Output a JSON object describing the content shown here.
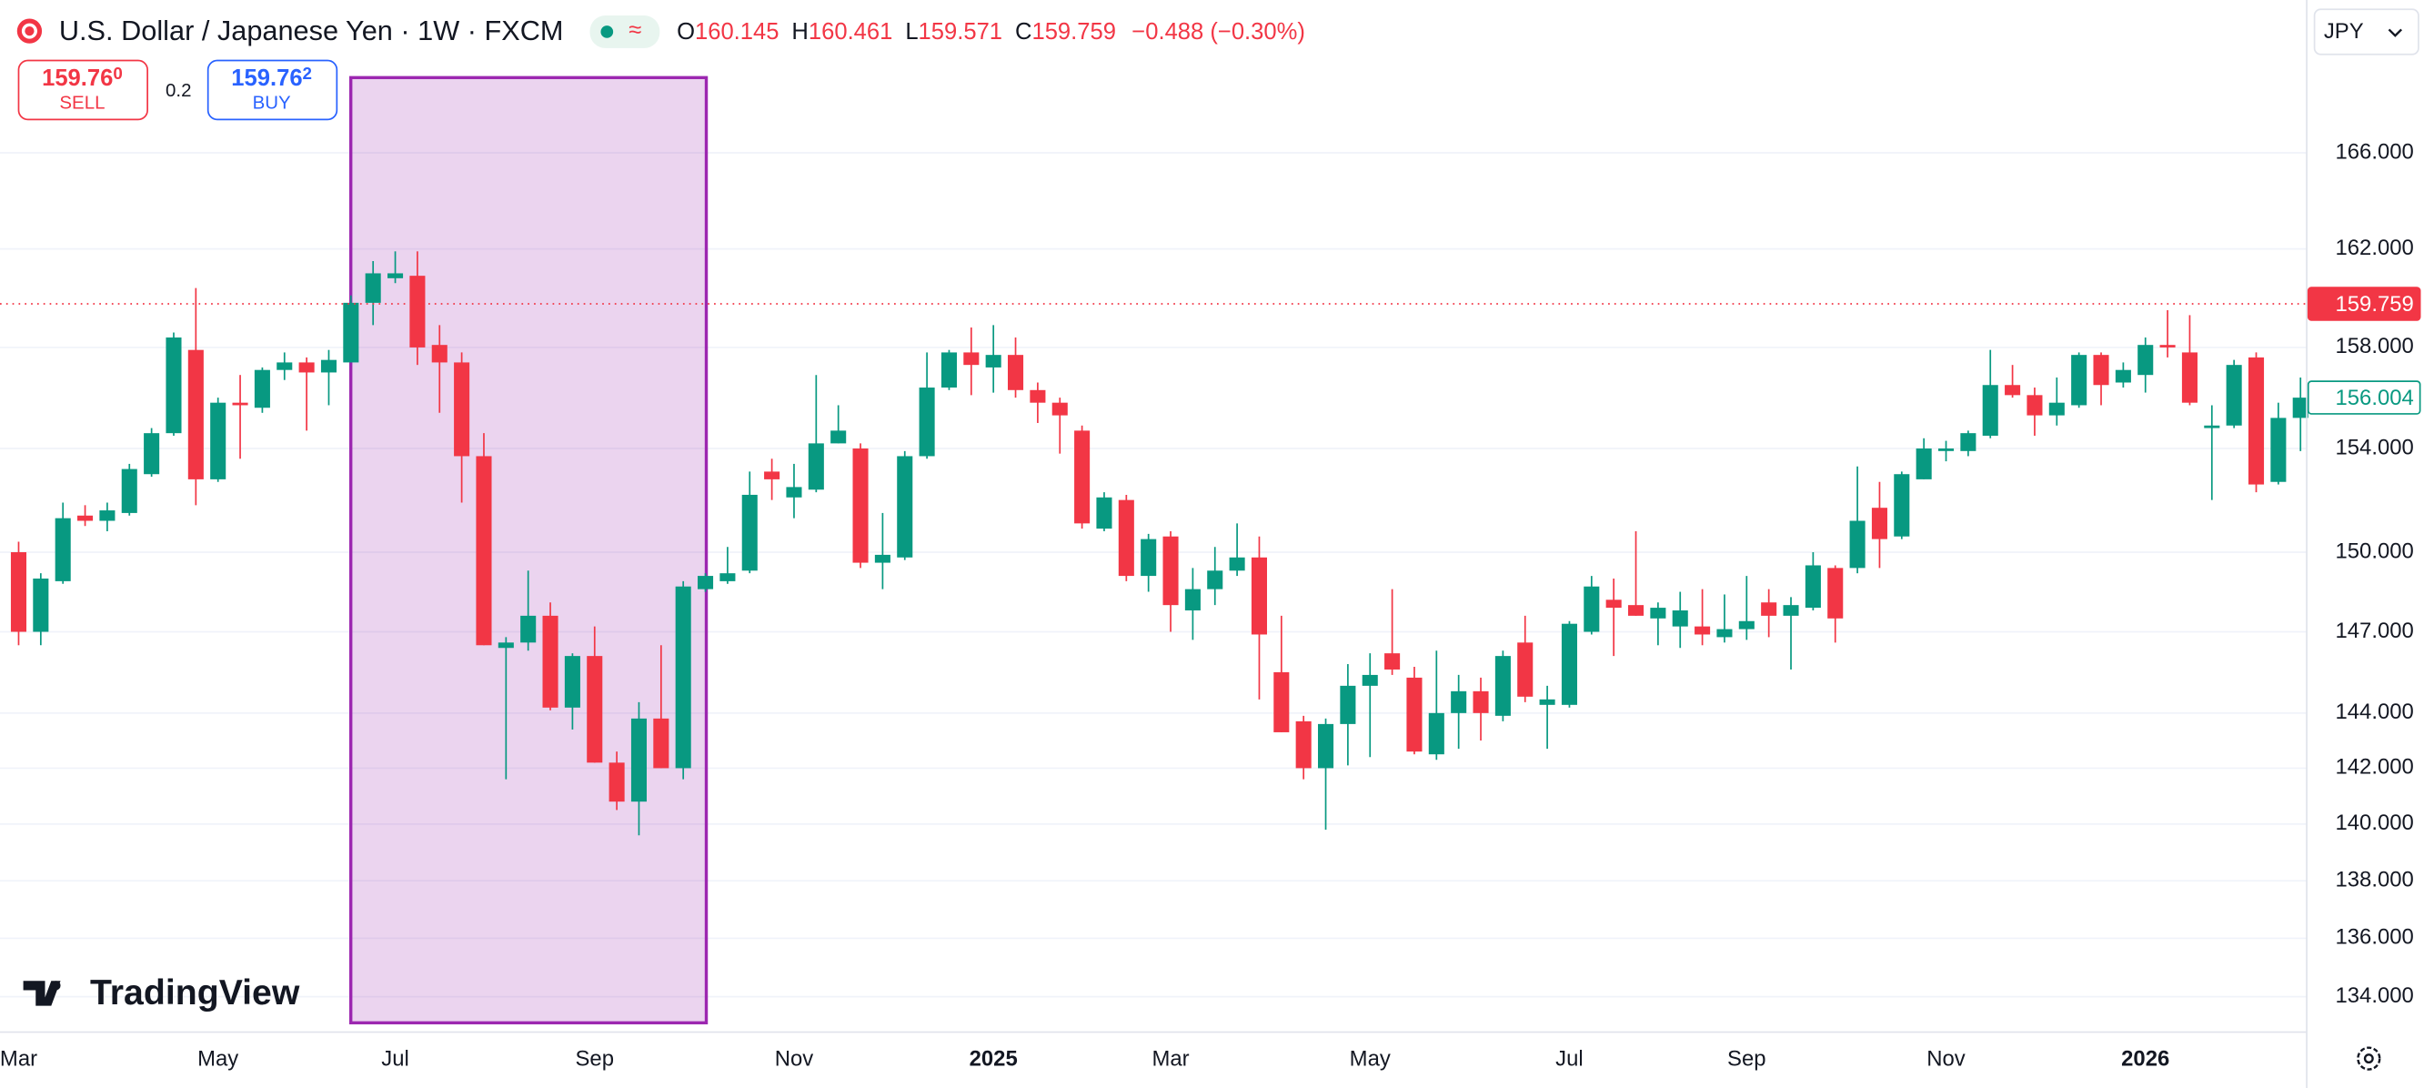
{
  "header": {
    "title": "U.S. Dollar / Japanese Yen · 1W · FXCM",
    "ohlc": [
      {
        "label": "O",
        "value": "160.145"
      },
      {
        "label": "H",
        "value": "160.461"
      },
      {
        "label": "L",
        "value": "159.571"
      },
      {
        "label": "C",
        "value": "159.759"
      }
    ],
    "change": "−0.488 (−0.30%)"
  },
  "trade": {
    "sell": {
      "price": "159.76",
      "pip": "0",
      "label": "SELL"
    },
    "spread": "0.2",
    "buy": {
      "price": "159.76",
      "pip": "2",
      "label": "BUY"
    }
  },
  "currency": "JPY",
  "brand": "TradingView",
  "chart_data": {
    "type": "candlestick",
    "log": true,
    "grid": true,
    "up_color": "#089981",
    "down_color": "#f23645",
    "categories": [
      "Mar",
      null,
      null,
      null,
      null,
      null,
      null,
      null,
      null,
      "May",
      null,
      null,
      null,
      null,
      null,
      null,
      null,
      "Jul",
      null,
      null,
      null,
      null,
      null,
      null,
      null,
      null,
      "Sep",
      null,
      null,
      null,
      null,
      null,
      null,
      null,
      null,
      "Nov",
      null,
      null,
      null,
      null,
      null,
      null,
      null,
      null,
      "2025",
      null,
      null,
      null,
      null,
      null,
      null,
      null,
      "Mar",
      null,
      null,
      null,
      null,
      null,
      null,
      null,
      null,
      "May",
      null,
      null,
      null,
      null,
      null,
      null,
      null,
      null,
      "Jul",
      null,
      null,
      null,
      null,
      null,
      null,
      null,
      "Sep",
      null,
      null,
      null,
      null,
      null,
      null,
      null,
      null,
      "Nov",
      null,
      null,
      null,
      null,
      null,
      null,
      null,
      null,
      "2026",
      null,
      null,
      null,
      null,
      null,
      null,
      null
    ],
    "open": [
      150.0,
      147.0,
      148.9,
      151.4,
      151.2,
      151.5,
      153.0,
      154.6,
      157.9,
      152.8,
      155.8,
      155.6,
      157.1,
      157.4,
      157.0,
      157.4,
      159.8,
      160.8,
      160.9,
      158.1,
      157.4,
      153.7,
      146.4,
      146.6,
      147.6,
      144.2,
      146.1,
      142.2,
      140.8,
      143.8,
      142.0,
      148.6,
      148.9,
      149.3,
      153.1,
      152.1,
      152.4,
      154.2,
      154.0,
      149.6,
      149.8,
      153.7,
      156.4,
      157.8,
      157.2,
      157.7,
      156.3,
      155.8,
      154.7,
      150.9,
      152.0,
      149.1,
      150.6,
      147.8,
      148.6,
      149.3,
      149.8,
      145.5,
      143.7,
      142.0,
      143.6,
      145.0,
      146.2,
      145.3,
      142.5,
      144.0,
      144.8,
      143.9,
      146.6,
      144.3,
      144.3,
      147.0,
      148.2,
      148.0,
      147.5,
      147.2,
      147.2,
      146.8,
      147.1,
      148.1,
      147.6,
      147.9,
      149.4,
      149.4,
      151.7,
      150.6,
      152.8,
      153.9,
      153.9,
      154.5,
      156.5,
      156.1,
      155.3,
      155.7,
      157.7,
      156.6,
      156.9,
      158.1,
      157.8,
      154.8,
      154.9,
      157.6,
      152.7,
      155.2
    ],
    "high": [
      150.4,
      149.2,
      151.9,
      151.8,
      151.9,
      153.4,
      154.8,
      158.6,
      160.4,
      156.0,
      156.9,
      157.2,
      157.8,
      157.6,
      157.9,
      160.1,
      161.5,
      161.9,
      161.9,
      158.9,
      157.8,
      154.6,
      146.8,
      149.3,
      148.1,
      146.2,
      147.2,
      142.6,
      144.4,
      146.5,
      148.9,
      149.2,
      150.2,
      153.1,
      153.6,
      153.4,
      156.9,
      155.7,
      154.2,
      151.5,
      153.9,
      157.8,
      157.9,
      158.8,
      158.9,
      158.4,
      156.6,
      156.0,
      154.9,
      152.3,
      152.2,
      150.7,
      150.8,
      149.4,
      150.2,
      151.1,
      150.6,
      147.6,
      143.9,
      143.8,
      145.8,
      146.2,
      148.6,
      145.7,
      146.3,
      145.4,
      145.3,
      146.3,
      147.6,
      145.0,
      147.4,
      149.1,
      149.0,
      150.8,
      148.1,
      148.5,
      148.6,
      148.4,
      149.1,
      148.6,
      148.3,
      150.0,
      149.5,
      153.3,
      152.7,
      153.1,
      154.4,
      154.3,
      154.7,
      157.9,
      157.3,
      156.4,
      156.8,
      157.8,
      157.8,
      157.4,
      158.4,
      159.5,
      159.3,
      155.7,
      157.5,
      157.8,
      155.8,
      156.8
    ],
    "low": [
      146.5,
      146.5,
      148.8,
      151.0,
      150.8,
      151.4,
      152.9,
      154.5,
      151.8,
      152.7,
      153.6,
      155.4,
      156.7,
      154.7,
      155.7,
      157.4,
      158.9,
      160.6,
      157.3,
      155.4,
      151.9,
      146.5,
      141.6,
      146.3,
      144.1,
      143.4,
      142.2,
      140.5,
      139.6,
      142.0,
      141.6,
      148.5,
      148.8,
      149.2,
      152.0,
      151.3,
      152.3,
      154.2,
      149.4,
      148.6,
      149.7,
      153.6,
      156.3,
      156.1,
      156.2,
      156.0,
      155.0,
      153.8,
      150.9,
      150.8,
      148.9,
      148.5,
      147.0,
      146.7,
      148.0,
      149.1,
      144.5,
      143.3,
      141.6,
      139.8,
      142.1,
      142.4,
      145.4,
      142.5,
      142.3,
      142.7,
      143.0,
      143.7,
      144.4,
      142.7,
      144.2,
      146.9,
      146.1,
      147.6,
      146.5,
      146.4,
      146.5,
      146.6,
      146.7,
      146.8,
      145.6,
      147.8,
      146.6,
      149.2,
      149.4,
      150.5,
      152.8,
      153.5,
      153.7,
      154.4,
      156.0,
      154.5,
      154.9,
      155.6,
      155.7,
      156.4,
      156.2,
      157.6,
      155.7,
      152.0,
      154.8,
      152.3,
      152.6,
      153.9
    ],
    "close": [
      147.0,
      149.0,
      151.3,
      151.2,
      151.6,
      153.2,
      154.6,
      158.4,
      152.8,
      155.8,
      155.7,
      157.1,
      157.4,
      157.0,
      157.5,
      159.8,
      161.0,
      161.0,
      158.0,
      157.4,
      153.7,
      146.5,
      146.6,
      147.6,
      144.2,
      146.1,
      142.2,
      140.8,
      143.8,
      142.0,
      148.7,
      149.1,
      149.2,
      152.2,
      152.8,
      152.5,
      154.2,
      154.7,
      149.6,
      149.9,
      153.7,
      156.4,
      157.8,
      157.3,
      157.7,
      156.3,
      155.8,
      155.3,
      151.1,
      152.1,
      149.1,
      150.5,
      148.0,
      148.6,
      149.3,
      149.8,
      146.9,
      143.3,
      142.0,
      143.6,
      145.0,
      145.4,
      145.6,
      142.6,
      144.0,
      144.8,
      144.0,
      146.1,
      144.6,
      144.5,
      147.3,
      148.7,
      147.9,
      147.6,
      147.9,
      147.8,
      146.9,
      147.1,
      147.4,
      147.6,
      148.0,
      149.5,
      147.5,
      151.2,
      150.5,
      153.0,
      154.0,
      154.0,
      154.6,
      156.5,
      156.1,
      155.3,
      155.8,
      157.7,
      156.5,
      157.1,
      158.1,
      158.0,
      155.8,
      154.9,
      157.3,
      152.6,
      155.2,
      156.0
    ],
    "ylim": [
      132.8,
      170
    ],
    "yticks": [
      {
        "value": 134,
        "label": "134.000"
      },
      {
        "value": 136,
        "label": "136.000"
      },
      {
        "value": 138,
        "label": "138.000"
      },
      {
        "value": 140,
        "label": "140.000"
      },
      {
        "value": 142,
        "label": "142.000"
      },
      {
        "value": 144,
        "label": "144.000"
      },
      {
        "value": 147,
        "label": "147.000"
      },
      {
        "value": 150,
        "label": "150.000"
      },
      {
        "value": 154,
        "label": "154.000"
      },
      {
        "value": 158,
        "label": "158.000"
      },
      {
        "value": 162,
        "label": "162.000"
      },
      {
        "value": 166,
        "label": "166.000"
      }
    ],
    "price_lines": [
      {
        "value": 159.759,
        "color": "#f23645",
        "line": true
      },
      {
        "value": 156.004,
        "color": "#089981",
        "line": false
      }
    ]
  }
}
